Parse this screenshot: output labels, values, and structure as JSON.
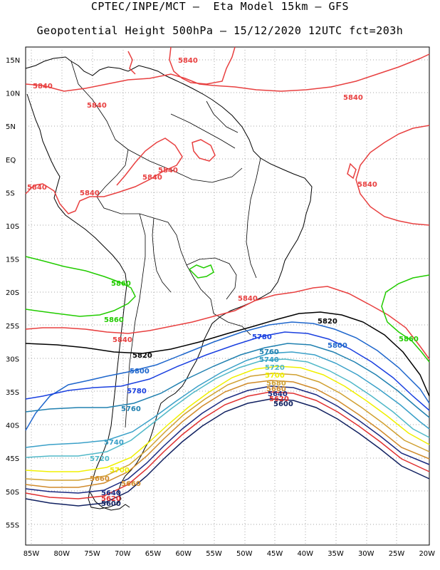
{
  "title": {
    "line1": "CPTEC/INPE/MCT –  Eta Model 15km – GFS",
    "line2": "Geopotential Height 500hPa – 15/12/2020 12UTC fct=203h"
  },
  "axes": {
    "lon_range": [
      -86,
      -20
    ],
    "lat_range": [
      -60,
      16
    ],
    "lon_ticks": [
      "85W",
      "80W",
      "75W",
      "70W",
      "65W",
      "60W",
      "55W",
      "50W",
      "45W",
      "40W",
      "35W",
      "30W",
      "25W",
      "20W"
    ],
    "lat_ticks": [
      "15N",
      "10N",
      "5N",
      "EQ",
      "5S",
      "10S",
      "15S",
      "20S",
      "25S",
      "30S",
      "35S",
      "40S",
      "45S",
      "50S",
      "55S"
    ],
    "grid": "dotted"
  },
  "contour_colors": {
    "5860": "#22cc00",
    "5840": "#e84040",
    "5820": "#000000",
    "5800": "#1e66cc",
    "5780": "#1a40e0",
    "5760": "#2080b0",
    "5740": "#3aa0c8",
    "5720": "#50b8c8",
    "5700": "#f0f000",
    "5680": "#d0a030",
    "5660": "#d08a2a",
    "5640": "#1a2a80",
    "5620": "#e03030",
    "5600": "#102060"
  },
  "contour_labels": [
    {
      "text": "5840",
      "color": "#e84040"
    },
    {
      "text": "5840",
      "color": "#e84040"
    },
    {
      "text": "5840",
      "color": "#e84040"
    },
    {
      "text": "5840",
      "color": "#e84040"
    },
    {
      "text": "5840",
      "color": "#e84040"
    },
    {
      "text": "5840",
      "color": "#e84040"
    },
    {
      "text": "5840",
      "color": "#e84040"
    },
    {
      "text": "5840",
      "color": "#e84040"
    },
    {
      "text": "5840",
      "color": "#e84040"
    },
    {
      "text": "5840",
      "color": "#e84040"
    },
    {
      "text": "5840",
      "color": "#e84040"
    },
    {
      "text": "5860",
      "color": "#22cc00"
    },
    {
      "text": "5860",
      "color": "#22cc00"
    },
    {
      "text": "5860",
      "color": "#22cc00"
    },
    {
      "text": "5820",
      "color": "#000000"
    },
    {
      "text": "5820",
      "color": "#000000"
    },
    {
      "text": "5780",
      "color": "#1a40e0"
    },
    {
      "text": "5800",
      "color": "#1e66cc"
    },
    {
      "text": "5800",
      "color": "#1e66cc"
    },
    {
      "text": "5760",
      "color": "#2080b0"
    },
    {
      "text": "5740",
      "color": "#3aa0c8"
    },
    {
      "text": "5720",
      "color": "#50b8c8"
    },
    {
      "text": "5700",
      "color": "#f0f000"
    },
    {
      "text": "5680",
      "color": "#d0a030"
    },
    {
      "text": "5660",
      "color": "#d08a2a"
    },
    {
      "text": "5640",
      "color": "#1a2a80"
    },
    {
      "text": "5620",
      "color": "#e03030"
    },
    {
      "text": "5600",
      "color": "#102060"
    },
    {
      "text": "5780",
      "color": "#1a40e0"
    },
    {
      "text": "5760",
      "color": "#2080b0"
    },
    {
      "text": "5740",
      "color": "#3aa0c8"
    },
    {
      "text": "5720",
      "color": "#50b8c8"
    },
    {
      "text": "5700",
      "color": "#f0f000"
    },
    {
      "text": "5660",
      "color": "#d08a2a"
    },
    {
      "text": "5660",
      "color": "#d08a2a"
    },
    {
      "text": "5640",
      "color": "#1a2a80"
    },
    {
      "text": "5620",
      "color": "#e03030"
    },
    {
      "text": "5600",
      "color": "#102060"
    }
  ]
}
